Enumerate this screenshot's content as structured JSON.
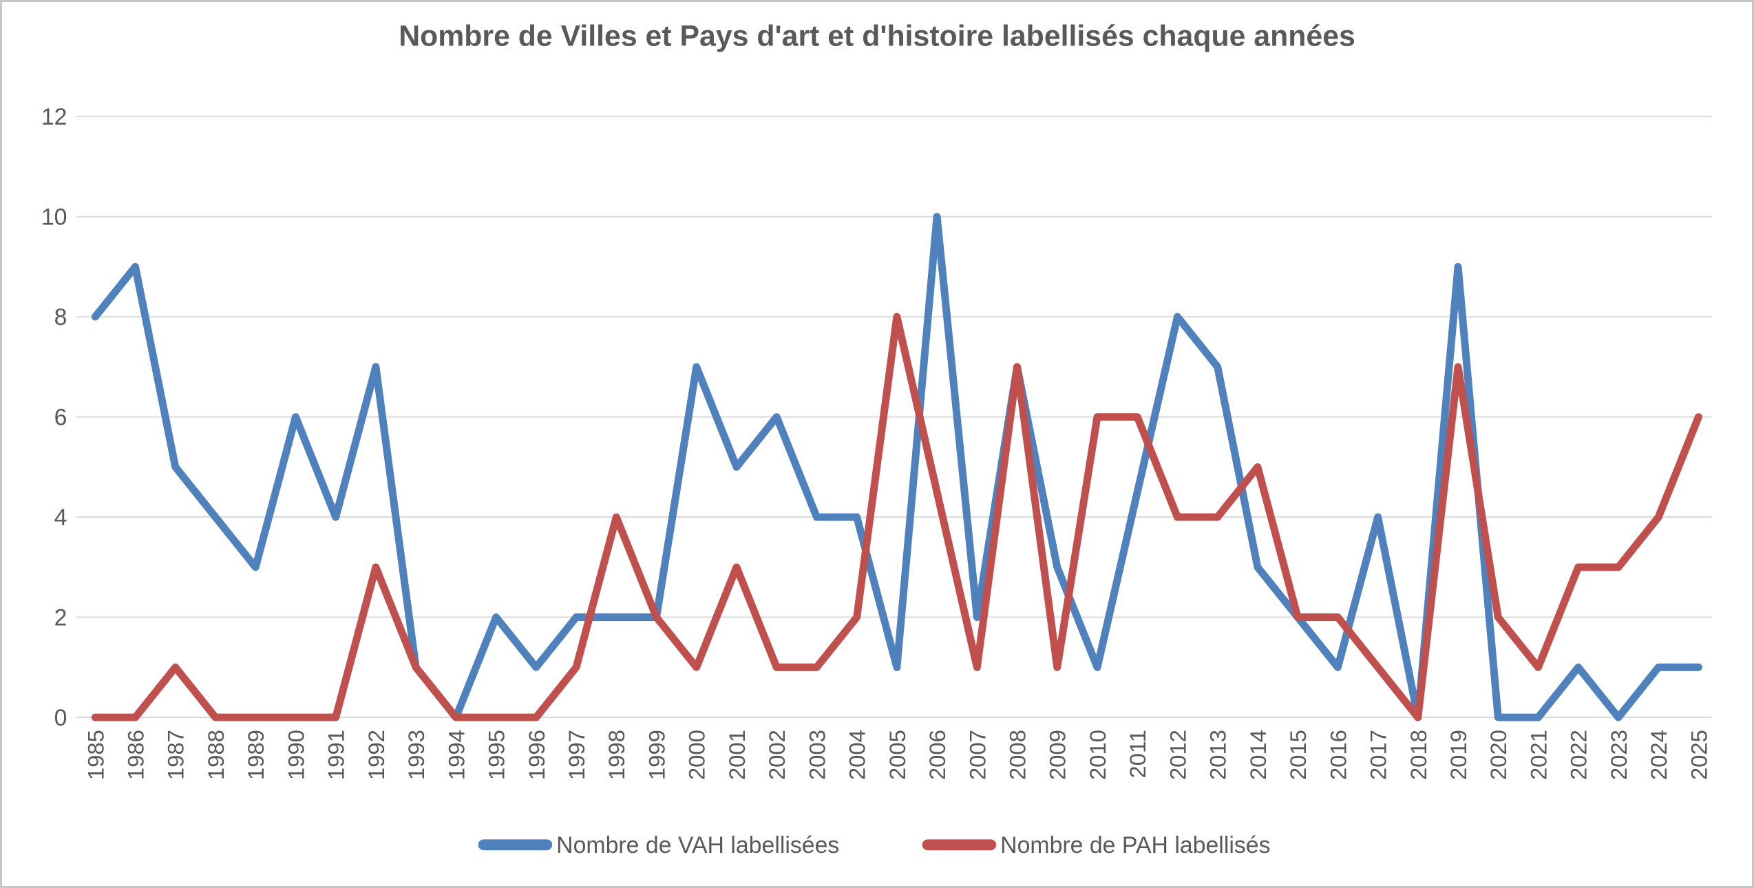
{
  "chart_data": {
    "type": "line",
    "title": "Nombre de Villes et Pays d'art et d'histoire labellisés chaque années",
    "categories": [
      "1985",
      "1986",
      "1987",
      "1988",
      "1989",
      "1990",
      "1991",
      "1992",
      "1993",
      "1994",
      "1995",
      "1996",
      "1997",
      "1998",
      "1999",
      "2000",
      "2001",
      "2002",
      "2003",
      "2004",
      "2005",
      "2006",
      "2007",
      "2008",
      "2009",
      "2010",
      "2011",
      "2012",
      "2013",
      "2014",
      "2015",
      "2016",
      "2017",
      "2018",
      "2019",
      "2020",
      "2021",
      "2022",
      "2023",
      "2024",
      "2025"
    ],
    "series": [
      {
        "name": "Nombre de VAH labellisées",
        "color": "#4F81BD",
        "values": [
          8,
          9,
          5,
          4,
          3,
          6,
          4,
          7,
          1,
          0,
          2,
          1,
          2,
          2,
          2,
          7,
          5,
          6,
          4,
          4,
          1,
          10,
          2,
          7,
          3,
          1,
          4.5,
          8,
          7,
          3,
          2,
          1,
          4,
          0,
          9,
          0,
          0,
          1,
          0,
          1,
          1
        ]
      },
      {
        "name": "Nombre de PAH labellisés",
        "color": "#C0504D",
        "values": [
          0,
          0,
          1,
          0,
          0,
          0,
          0,
          3,
          1,
          0,
          0,
          0,
          1,
          4,
          2,
          1,
          3,
          1,
          1,
          2,
          8,
          4.5,
          1,
          7,
          1,
          6,
          6,
          4,
          4,
          5,
          2,
          2,
          1,
          0,
          7,
          2,
          1,
          3,
          3,
          4,
          6
        ]
      }
    ],
    "xlabel": "",
    "ylabel": "",
    "ylim": [
      0,
      12
    ],
    "yticks": [
      0,
      2,
      4,
      6,
      8,
      10,
      12
    ],
    "grid": "horizontal",
    "legend_position": "bottom-center",
    "gridline_color": "#d9d9d9",
    "text_color": "#595959"
  }
}
